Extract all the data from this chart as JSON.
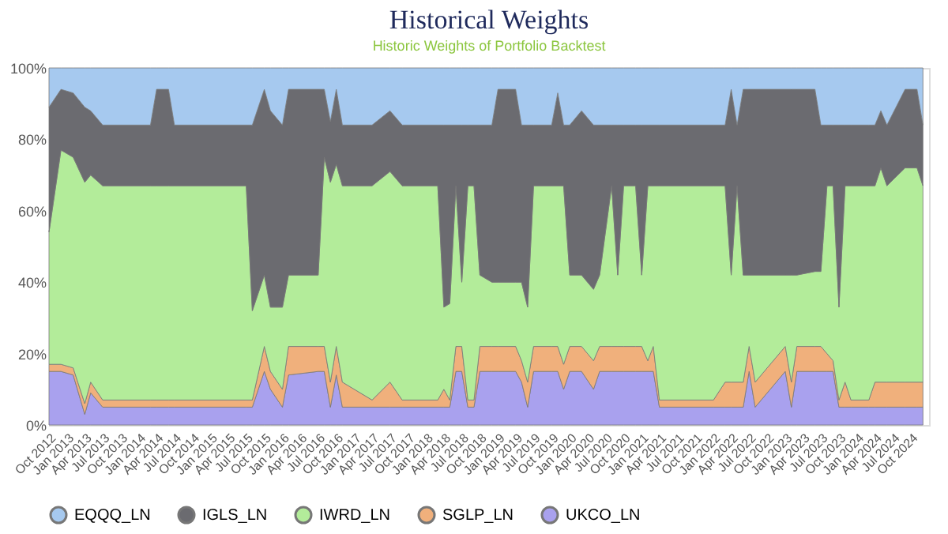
{
  "chart_data": {
    "type": "area",
    "stacked": true,
    "title": "Historical Weights",
    "subtitle": "Historic Weights of Portfolio Backtest",
    "x": [
      "2012-10",
      "2012-12",
      "2013-02",
      "2013-04",
      "2013-05",
      "2013-07",
      "2014-03",
      "2014-04",
      "2014-06",
      "2014-07",
      "2015-07",
      "2015-08",
      "2015-10",
      "2015-11",
      "2016-01",
      "2016-02",
      "2016-07",
      "2016-08",
      "2016-09",
      "2016-10",
      "2016-11",
      "2017-04",
      "2017-07",
      "2017-09",
      "2018-03",
      "2018-04",
      "2018-05",
      "2018-06",
      "2018-07",
      "2018-08",
      "2018-09",
      "2018-10",
      "2018-12",
      "2019-01",
      "2019-04",
      "2019-05",
      "2019-06",
      "2019-07",
      "2019-10",
      "2019-11",
      "2019-12",
      "2020-01",
      "2020-03",
      "2020-05",
      "2020-06",
      "2020-08",
      "2020-09",
      "2020-10",
      "2020-12",
      "2021-01",
      "2021-02",
      "2021-03",
      "2021-04",
      "2022-01",
      "2022-03",
      "2022-04",
      "2022-05",
      "2022-06",
      "2022-07",
      "2022-08",
      "2023-01",
      "2023-02",
      "2023-03",
      "2023-06",
      "2023-07",
      "2023-08",
      "2023-09",
      "2023-10",
      "2023-11",
      "2023-12",
      "2024-03",
      "2024-04",
      "2024-05",
      "2024-06",
      "2024-09",
      "2024-11",
      "2024-12"
    ],
    "series": [
      {
        "name": "UKCO_LN",
        "color": "#a9a1ee",
        "values": [
          15,
          15,
          14,
          3,
          9,
          5,
          5,
          5,
          5,
          5,
          5,
          5,
          15,
          10,
          5,
          14,
          15,
          15,
          5,
          14,
          5,
          5,
          5,
          5,
          5,
          5,
          5,
          15,
          15,
          5,
          5,
          15,
          15,
          15,
          15,
          12,
          5,
          15,
          15,
          15,
          10,
          15,
          15,
          10,
          15,
          15,
          15,
          15,
          15,
          15,
          15,
          15,
          5,
          5,
          5,
          5,
          5,
          5,
          15,
          5,
          15,
          5,
          15,
          15,
          15,
          15,
          15,
          5,
          5,
          5,
          5,
          5,
          5,
          5,
          5,
          5,
          5
        ]
      },
      {
        "name": "SGLP_LN",
        "color": "#f0b07c",
        "values": [
          2,
          2,
          2,
          3,
          3,
          2,
          2,
          2,
          2,
          2,
          2,
          2,
          7,
          5,
          5,
          8,
          7,
          7,
          7,
          8,
          7,
          2,
          7,
          2,
          2,
          5,
          2,
          7,
          7,
          2,
          2,
          7,
          7,
          7,
          7,
          6,
          7,
          7,
          7,
          7,
          7,
          7,
          7,
          8,
          7,
          7,
          7,
          7,
          7,
          7,
          3,
          7,
          2,
          2,
          7,
          7,
          7,
          7,
          7,
          7,
          7,
          7,
          7,
          7,
          7,
          5,
          3,
          2,
          7,
          2,
          2,
          7,
          7,
          7,
          7,
          7,
          7
        ]
      },
      {
        "name": "IWRD_LN",
        "color": "#b3ec9a",
        "values": [
          37,
          60,
          59,
          62,
          58,
          60,
          60,
          60,
          60,
          60,
          60,
          25,
          20,
          18,
          23,
          20,
          20,
          53,
          56,
          51,
          55,
          60,
          59,
          60,
          60,
          23,
          27,
          45,
          18,
          60,
          60,
          20,
          18,
          18,
          18,
          22,
          21,
          45,
          45,
          45,
          50,
          20,
          20,
          20,
          20,
          45,
          20,
          45,
          45,
          20,
          49,
          45,
          60,
          60,
          55,
          30,
          55,
          30,
          20,
          30,
          20,
          30,
          20,
          21,
          21,
          47,
          49,
          26,
          55,
          60,
          60,
          55,
          60,
          55,
          60,
          60,
          55
        ]
      },
      {
        "name": "IGLS_LN",
        "color": "#6b6b70",
        "values": [
          35,
          17,
          18,
          21,
          18,
          17,
          17,
          27,
          27,
          17,
          17,
          52,
          52,
          55,
          51,
          52,
          52,
          19,
          17,
          21,
          17,
          17,
          17,
          17,
          17,
          51,
          50,
          17,
          44,
          17,
          17,
          42,
          44,
          54,
          54,
          44,
          51,
          17,
          17,
          26,
          17,
          42,
          46,
          46,
          42,
          17,
          42,
          17,
          17,
          42,
          17,
          17,
          17,
          17,
          17,
          52,
          17,
          52,
          52,
          52,
          52,
          52,
          52,
          51,
          41,
          17,
          17,
          51,
          17,
          17,
          17,
          17,
          16,
          17,
          22,
          22,
          17
        ]
      },
      {
        "name": "EQQQ_LN",
        "color": "#a6c9ef",
        "values": [
          11,
          6,
          7,
          11,
          12,
          16,
          16,
          6,
          6,
          16,
          16,
          16,
          6,
          12,
          16,
          6,
          6,
          6,
          15,
          6,
          16,
          16,
          12,
          16,
          16,
          16,
          16,
          16,
          16,
          16,
          16,
          16,
          16,
          6,
          6,
          16,
          16,
          16,
          16,
          7,
          16,
          16,
          12,
          16,
          16,
          16,
          16,
          16,
          16,
          16,
          16,
          16,
          16,
          16,
          16,
          6,
          16,
          6,
          6,
          6,
          6,
          6,
          6,
          6,
          16,
          16,
          16,
          16,
          16,
          16,
          16,
          16,
          12,
          16,
          6,
          6,
          16
        ]
      }
    ],
    "xlim": [
      "2012-10",
      "2025-01"
    ],
    "xticks": [
      {
        "value": "2012-10",
        "label": "Oct 2012"
      },
      {
        "value": "2013-01",
        "label": "Jan 2013"
      },
      {
        "value": "2013-04",
        "label": "Apr 2013"
      },
      {
        "value": "2013-07",
        "label": "Jul 2013"
      },
      {
        "value": "2013-10",
        "label": "Oct 2013"
      },
      {
        "value": "2014-01",
        "label": "Jan 2014"
      },
      {
        "value": "2014-04",
        "label": "Apr 2014"
      },
      {
        "value": "2014-07",
        "label": "Jul 2014"
      },
      {
        "value": "2014-10",
        "label": "Oct 2014"
      },
      {
        "value": "2015-01",
        "label": "Jan 2015"
      },
      {
        "value": "2015-04",
        "label": "Apr 2015"
      },
      {
        "value": "2015-07",
        "label": "Jul 2015"
      },
      {
        "value": "2015-10",
        "label": "Oct 2015"
      },
      {
        "value": "2016-01",
        "label": "Jan 2016"
      },
      {
        "value": "2016-04",
        "label": "Apr 2016"
      },
      {
        "value": "2016-07",
        "label": "Jul 2016"
      },
      {
        "value": "2016-10",
        "label": "Oct 2016"
      },
      {
        "value": "2017-01",
        "label": "Jan 2017"
      },
      {
        "value": "2017-04",
        "label": "Apr 2017"
      },
      {
        "value": "2017-07",
        "label": "Jul 2017"
      },
      {
        "value": "2017-10",
        "label": "Oct 2017"
      },
      {
        "value": "2018-01",
        "label": "Jan 2018"
      },
      {
        "value": "2018-04",
        "label": "Apr 2018"
      },
      {
        "value": "2018-07",
        "label": "Jul 2018"
      },
      {
        "value": "2018-10",
        "label": "Oct 2018"
      },
      {
        "value": "2019-01",
        "label": "Jan 2019"
      },
      {
        "value": "2019-04",
        "label": "Apr 2019"
      },
      {
        "value": "2019-07",
        "label": "Jul 2019"
      },
      {
        "value": "2019-10",
        "label": "Oct 2019"
      },
      {
        "value": "2020-01",
        "label": "Jan 2020"
      },
      {
        "value": "2020-04",
        "label": "Apr 2020"
      },
      {
        "value": "2020-07",
        "label": "Jul 2020"
      },
      {
        "value": "2020-10",
        "label": "Oct 2020"
      },
      {
        "value": "2021-01",
        "label": "Jan 2021"
      },
      {
        "value": "2021-04",
        "label": "Apr 2021"
      },
      {
        "value": "2021-07",
        "label": "Jul 2021"
      },
      {
        "value": "2021-10",
        "label": "Oct 2021"
      },
      {
        "value": "2022-01",
        "label": "Jan 2022"
      },
      {
        "value": "2022-04",
        "label": "Apr 2022"
      },
      {
        "value": "2022-07",
        "label": "Jul 2022"
      },
      {
        "value": "2022-10",
        "label": "Oct 2022"
      },
      {
        "value": "2023-01",
        "label": "Jan 2023"
      },
      {
        "value": "2023-04",
        "label": "Apr 2023"
      },
      {
        "value": "2023-07",
        "label": "Jul 2023"
      },
      {
        "value": "2023-10",
        "label": "Oct 2023"
      },
      {
        "value": "2024-01",
        "label": "Jan 2024"
      },
      {
        "value": "2024-04",
        "label": "Apr 2024"
      },
      {
        "value": "2024-07",
        "label": "Jul 2024"
      },
      {
        "value": "2024-10",
        "label": "Oct 2024"
      }
    ],
    "ylim": [
      0,
      100
    ],
    "yticks": [
      {
        "value": 0,
        "label": "0%"
      },
      {
        "value": 20,
        "label": "20%"
      },
      {
        "value": 40,
        "label": "40%"
      },
      {
        "value": 60,
        "label": "60%"
      },
      {
        "value": 80,
        "label": "80%"
      },
      {
        "value": 100,
        "label": "100%"
      }
    ],
    "grid": false,
    "legend": "bottom"
  }
}
